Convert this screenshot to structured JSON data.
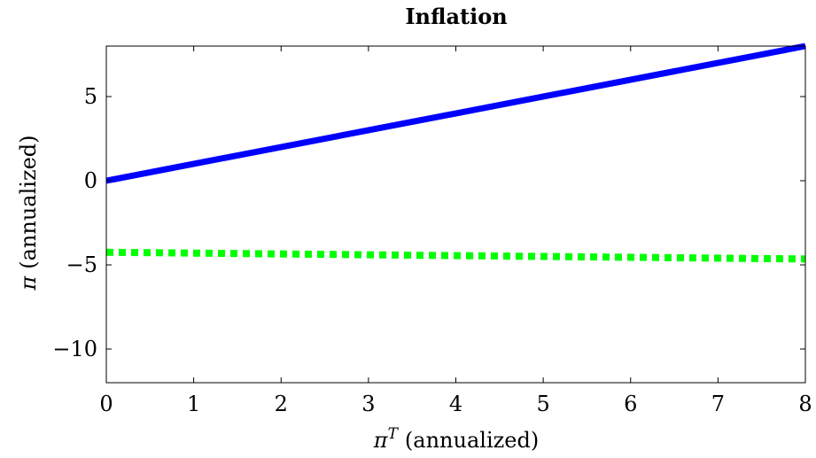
{
  "chart_data": {
    "type": "line",
    "title": "Inflation",
    "xlabel_symbol": "π",
    "xlabel_sup": "T",
    "xlabel_text": "(annualized)",
    "ylabel_symbol": "π",
    "ylabel_text": "(annualized)",
    "xlim": [
      0,
      8
    ],
    "ylim": [
      -12,
      8
    ],
    "xticks": [
      0,
      1,
      2,
      3,
      4,
      5,
      6,
      7,
      8
    ],
    "yticks": [
      5,
      0,
      -5,
      -10
    ],
    "xtick_labels": [
      "0",
      "1",
      "2",
      "3",
      "4",
      "5",
      "6",
      "7",
      "8"
    ],
    "ytick_labels": [
      "5",
      "0",
      "−5",
      "−10"
    ],
    "grid": false,
    "series": [
      {
        "color": "#0000ff",
        "style": "solid",
        "x": [
          0,
          8
        ],
        "y": [
          0,
          8
        ]
      },
      {
        "color": "#00ff00",
        "style": "dotted",
        "x": [
          0,
          8
        ],
        "y": [
          -4.25,
          -4.65
        ]
      }
    ]
  }
}
